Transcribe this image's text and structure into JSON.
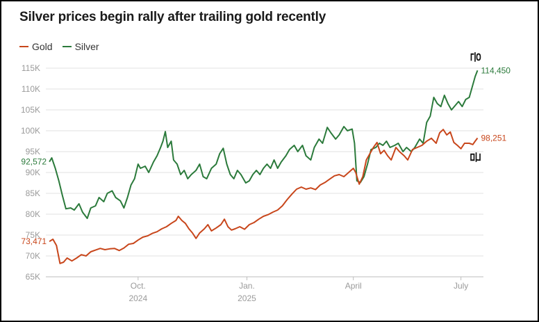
{
  "title": "Silver prices begin rally after trailing gold recently",
  "legend": [
    {
      "label": "Gold",
      "color": "#c8461b"
    },
    {
      "label": "Silver",
      "color": "#2b7a3b"
    }
  ],
  "annotations": {
    "silver_glyph": "은",
    "gold_glyph": "금"
  },
  "chart_data": {
    "type": "line",
    "title": "Silver prices begin rally after trailing gold recently",
    "xlabel": "",
    "ylabel": "",
    "ylim": [
      65000,
      116000
    ],
    "grid": true,
    "legend_position": "top-left",
    "y_ticks": [
      {
        "value": 65000,
        "label": "65K"
      },
      {
        "value": 70000,
        "label": "70K"
      },
      {
        "value": 75000,
        "label": "75K"
      },
      {
        "value": 80000,
        "label": "80K"
      },
      {
        "value": 85000,
        "label": "85K"
      },
      {
        "value": 90000,
        "label": "90K"
      },
      {
        "value": 95000,
        "label": "95K"
      },
      {
        "value": 100000,
        "label": "100K"
      },
      {
        "value": 105000,
        "label": "105K"
      },
      {
        "value": 110000,
        "label": "110K"
      },
      {
        "value": 115000,
        "label": "115K"
      }
    ],
    "x_domain": [
      "2024-07-15",
      "2025-07-20"
    ],
    "x_ticks": [
      {
        "date": "2024-10-01",
        "label": "Oct.",
        "sublabel": "2024"
      },
      {
        "date": "2025-01-01",
        "label": "Jan.",
        "sublabel": "2025"
      },
      {
        "date": "2025-04-01",
        "label": "April",
        "sublabel": ""
      },
      {
        "date": "2025-07-01",
        "label": "July",
        "sublabel": ""
      }
    ],
    "series": [
      {
        "name": "Silver",
        "color": "#2b7a3b",
        "first_label": "92,572",
        "last_label": "114,450",
        "points": [
          [
            "2024-07-18",
            92572
          ],
          [
            "2024-07-20",
            93500
          ],
          [
            "2024-07-23",
            91000
          ],
          [
            "2024-07-26",
            88000
          ],
          [
            "2024-07-29",
            84500
          ],
          [
            "2024-08-01",
            81300
          ],
          [
            "2024-08-05",
            81500
          ],
          [
            "2024-08-08",
            81000
          ],
          [
            "2024-08-12",
            82500
          ],
          [
            "2024-08-15",
            80500
          ],
          [
            "2024-08-19",
            79000
          ],
          [
            "2024-08-22",
            81500
          ],
          [
            "2024-08-26",
            82000
          ],
          [
            "2024-08-29",
            84000
          ],
          [
            "2024-09-02",
            83000
          ],
          [
            "2024-09-05",
            85000
          ],
          [
            "2024-09-09",
            85600
          ],
          [
            "2024-09-12",
            84000
          ],
          [
            "2024-09-16",
            83200
          ],
          [
            "2024-09-19",
            81500
          ],
          [
            "2024-09-22",
            84000
          ],
          [
            "2024-09-25",
            87000
          ],
          [
            "2024-09-28",
            88500
          ],
          [
            "2024-10-01",
            92000
          ],
          [
            "2024-10-03",
            91000
          ],
          [
            "2024-10-07",
            91500
          ],
          [
            "2024-10-10",
            90000
          ],
          [
            "2024-10-14",
            92500
          ],
          [
            "2024-10-17",
            94000
          ],
          [
            "2024-10-20",
            96000
          ],
          [
            "2024-10-22",
            97500
          ],
          [
            "2024-10-24",
            99800
          ],
          [
            "2024-10-26",
            96000
          ],
          [
            "2024-10-29",
            97500
          ],
          [
            "2024-10-31",
            93000
          ],
          [
            "2024-11-03",
            92000
          ],
          [
            "2024-11-06",
            89500
          ],
          [
            "2024-11-09",
            90500
          ],
          [
            "2024-11-12",
            88500
          ],
          [
            "2024-11-15",
            89500
          ],
          [
            "2024-11-19",
            90500
          ],
          [
            "2024-11-22",
            92000
          ],
          [
            "2024-11-25",
            89000
          ],
          [
            "2024-11-28",
            88500
          ],
          [
            "2024-12-02",
            91000
          ],
          [
            "2024-12-06",
            92000
          ],
          [
            "2024-12-09",
            94500
          ],
          [
            "2024-12-12",
            95800
          ],
          [
            "2024-12-15",
            92000
          ],
          [
            "2024-12-18",
            89500
          ],
          [
            "2024-12-21",
            88500
          ],
          [
            "2024-12-24",
            90500
          ],
          [
            "2024-12-27",
            89500
          ],
          [
            "2024-12-31",
            87500
          ],
          [
            "2025-01-03",
            88000
          ],
          [
            "2025-01-06",
            89500
          ],
          [
            "2025-01-09",
            90500
          ],
          [
            "2025-01-12",
            89500
          ],
          [
            "2025-01-15",
            91000
          ],
          [
            "2025-01-18",
            92000
          ],
          [
            "2025-01-21",
            91000
          ],
          [
            "2025-01-24",
            93000
          ],
          [
            "2025-01-27",
            91000
          ],
          [
            "2025-01-30",
            92500
          ],
          [
            "2025-02-03",
            94000
          ],
          [
            "2025-02-06",
            95500
          ],
          [
            "2025-02-10",
            96500
          ],
          [
            "2025-02-13",
            95000
          ],
          [
            "2025-02-17",
            96500
          ],
          [
            "2025-02-20",
            94000
          ],
          [
            "2025-02-24",
            93000
          ],
          [
            "2025-02-27",
            96000
          ],
          [
            "2025-03-03",
            98000
          ],
          [
            "2025-03-06",
            97000
          ],
          [
            "2025-03-10",
            100800
          ],
          [
            "2025-03-13",
            99500
          ],
          [
            "2025-03-17",
            98000
          ],
          [
            "2025-03-20",
            99000
          ],
          [
            "2025-03-24",
            101000
          ],
          [
            "2025-03-27",
            100000
          ],
          [
            "2025-03-31",
            100400
          ],
          [
            "2025-04-02",
            97000
          ],
          [
            "2025-04-04",
            88000
          ],
          [
            "2025-04-07",
            87600
          ],
          [
            "2025-04-10",
            89000
          ],
          [
            "2025-04-13",
            92000
          ],
          [
            "2025-04-16",
            95500
          ],
          [
            "2025-04-20",
            96000
          ],
          [
            "2025-04-23",
            97000
          ],
          [
            "2025-04-26",
            96500
          ],
          [
            "2025-04-29",
            97500
          ],
          [
            "2025-05-02",
            96000
          ],
          [
            "2025-05-06",
            96500
          ],
          [
            "2025-05-09",
            97000
          ],
          [
            "2025-05-13",
            95000
          ],
          [
            "2025-05-16",
            96000
          ],
          [
            "2025-05-20",
            95000
          ],
          [
            "2025-05-23",
            96000
          ],
          [
            "2025-05-27",
            98000
          ],
          [
            "2025-05-30",
            97000
          ],
          [
            "2025-06-02",
            102000
          ],
          [
            "2025-06-05",
            103500
          ],
          [
            "2025-06-08",
            108000
          ],
          [
            "2025-06-11",
            106500
          ],
          [
            "2025-06-14",
            105800
          ],
          [
            "2025-06-17",
            108500
          ],
          [
            "2025-06-20",
            106500
          ],
          [
            "2025-06-23",
            105000
          ],
          [
            "2025-06-26",
            106000
          ],
          [
            "2025-06-29",
            107000
          ],
          [
            "2025-07-02",
            105800
          ],
          [
            "2025-07-05",
            107500
          ],
          [
            "2025-07-08",
            108000
          ],
          [
            "2025-07-11",
            111000
          ],
          [
            "2025-07-13",
            113000
          ],
          [
            "2025-07-15",
            114450
          ]
        ]
      },
      {
        "name": "Gold",
        "color": "#c8461b",
        "first_label": "73,471",
        "last_label": "98,251",
        "points": [
          [
            "2024-07-18",
            73471
          ],
          [
            "2024-07-21",
            74000
          ],
          [
            "2024-07-24",
            72500
          ],
          [
            "2024-07-27",
            68200
          ],
          [
            "2024-07-30",
            68500
          ],
          [
            "2024-08-02",
            69500
          ],
          [
            "2024-08-06",
            68800
          ],
          [
            "2024-08-10",
            69500
          ],
          [
            "2024-08-14",
            70300
          ],
          [
            "2024-08-18",
            70000
          ],
          [
            "2024-08-22",
            71000
          ],
          [
            "2024-08-26",
            71400
          ],
          [
            "2024-08-30",
            71800
          ],
          [
            "2024-09-03",
            71500
          ],
          [
            "2024-09-07",
            71700
          ],
          [
            "2024-09-11",
            71800
          ],
          [
            "2024-09-15",
            71300
          ],
          [
            "2024-09-19",
            71900
          ],
          [
            "2024-09-23",
            72800
          ],
          [
            "2024-09-27",
            73000
          ],
          [
            "2024-10-01",
            73800
          ],
          [
            "2024-10-05",
            74500
          ],
          [
            "2024-10-09",
            74800
          ],
          [
            "2024-10-13",
            75400
          ],
          [
            "2024-10-17",
            75800
          ],
          [
            "2024-10-21",
            76500
          ],
          [
            "2024-10-25",
            77000
          ],
          [
            "2024-10-29",
            77800
          ],
          [
            "2024-11-02",
            78500
          ],
          [
            "2024-11-04",
            79500
          ],
          [
            "2024-11-07",
            78500
          ],
          [
            "2024-11-10",
            77800
          ],
          [
            "2024-11-13",
            76500
          ],
          [
            "2024-11-16",
            75500
          ],
          [
            "2024-11-19",
            74200
          ],
          [
            "2024-11-22",
            75500
          ],
          [
            "2024-11-26",
            76500
          ],
          [
            "2024-11-29",
            77500
          ],
          [
            "2024-12-02",
            76000
          ],
          [
            "2024-12-06",
            76700
          ],
          [
            "2024-12-10",
            77500
          ],
          [
            "2024-12-13",
            78800
          ],
          [
            "2024-12-16",
            77000
          ],
          [
            "2024-12-19",
            76200
          ],
          [
            "2024-12-22",
            76500
          ],
          [
            "2024-12-26",
            77000
          ],
          [
            "2024-12-30",
            76400
          ],
          [
            "2025-01-03",
            77500
          ],
          [
            "2025-01-07",
            78000
          ],
          [
            "2025-01-11",
            78800
          ],
          [
            "2025-01-15",
            79500
          ],
          [
            "2025-01-19",
            79900
          ],
          [
            "2025-01-23",
            80500
          ],
          [
            "2025-01-27",
            81000
          ],
          [
            "2025-01-31",
            82000
          ],
          [
            "2025-02-04",
            83500
          ],
          [
            "2025-02-08",
            84800
          ],
          [
            "2025-02-12",
            86000
          ],
          [
            "2025-02-16",
            86500
          ],
          [
            "2025-02-20",
            86000
          ],
          [
            "2025-02-24",
            86300
          ],
          [
            "2025-02-28",
            85900
          ],
          [
            "2025-03-04",
            87000
          ],
          [
            "2025-03-08",
            87600
          ],
          [
            "2025-03-12",
            88400
          ],
          [
            "2025-03-16",
            89200
          ],
          [
            "2025-03-20",
            89500
          ],
          [
            "2025-03-24",
            89000
          ],
          [
            "2025-03-28",
            90000
          ],
          [
            "2025-04-01",
            91000
          ],
          [
            "2025-04-03",
            90000
          ],
          [
            "2025-04-06",
            87200
          ],
          [
            "2025-04-09",
            89000
          ],
          [
            "2025-04-12",
            93000
          ],
          [
            "2025-04-15",
            94500
          ],
          [
            "2025-04-18",
            96000
          ],
          [
            "2025-04-21",
            97200
          ],
          [
            "2025-04-24",
            94500
          ],
          [
            "2025-04-27",
            95300
          ],
          [
            "2025-04-30",
            94000
          ],
          [
            "2025-05-03",
            93000
          ],
          [
            "2025-05-07",
            96000
          ],
          [
            "2025-05-10",
            95000
          ],
          [
            "2025-05-14",
            94000
          ],
          [
            "2025-05-17",
            93000
          ],
          [
            "2025-05-21",
            95500
          ],
          [
            "2025-05-25",
            96000
          ],
          [
            "2025-05-29",
            96500
          ],
          [
            "2025-06-02",
            97500
          ],
          [
            "2025-06-06",
            98200
          ],
          [
            "2025-06-10",
            97000
          ],
          [
            "2025-06-13",
            99500
          ],
          [
            "2025-06-16",
            100300
          ],
          [
            "2025-06-19",
            99000
          ],
          [
            "2025-06-22",
            99700
          ],
          [
            "2025-06-25",
            97200
          ],
          [
            "2025-06-28",
            96500
          ],
          [
            "2025-07-01",
            95700
          ],
          [
            "2025-07-04",
            97000
          ],
          [
            "2025-07-08",
            97000
          ],
          [
            "2025-07-11",
            96700
          ],
          [
            "2025-07-13",
            97500
          ],
          [
            "2025-07-15",
            98251
          ]
        ]
      }
    ]
  }
}
